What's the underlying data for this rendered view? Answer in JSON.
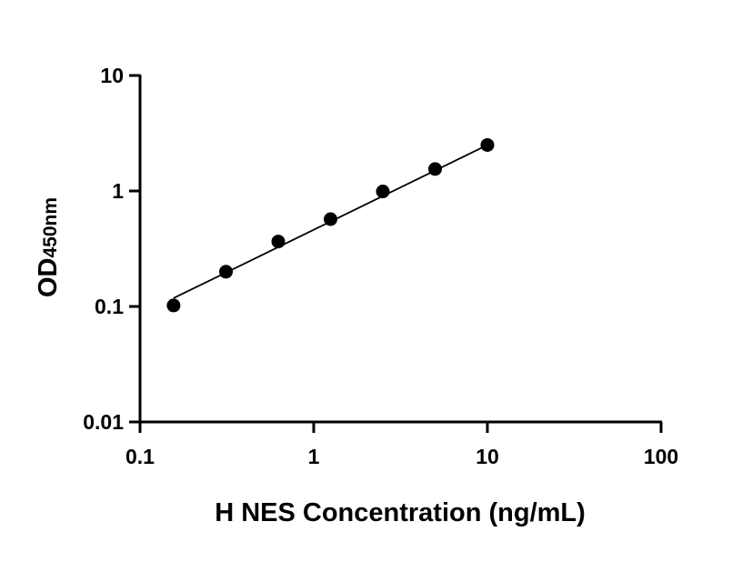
{
  "chart_data": {
    "type": "scatter",
    "title": "",
    "xlabel": "H NES Concentration (ng/mL)",
    "ylabel": "OD",
    "ylabel_subscript": "450nm",
    "x_scale": "log",
    "y_scale": "log",
    "xlim": [
      0.1,
      100
    ],
    "ylim": [
      0.01,
      10
    ],
    "x_ticks": [
      "0.1",
      "1",
      "10",
      "100"
    ],
    "y_ticks": [
      "0.01",
      "0.1",
      "1",
      "10"
    ],
    "grid": false,
    "legend": "none",
    "series": [
      {
        "x": [
          0.156,
          0.3125,
          0.625,
          1.25,
          2.5,
          5,
          10
        ],
        "y": [
          0.102,
          0.2,
          0.365,
          0.57,
          0.99,
          1.55,
          2.5
        ]
      }
    ],
    "fit_line": {
      "x": [
        0.156,
        10
      ],
      "y": [
        0.118,
        2.5
      ]
    },
    "colors": {
      "points": "#000000",
      "line": "#000000",
      "axes": "#000000"
    }
  }
}
